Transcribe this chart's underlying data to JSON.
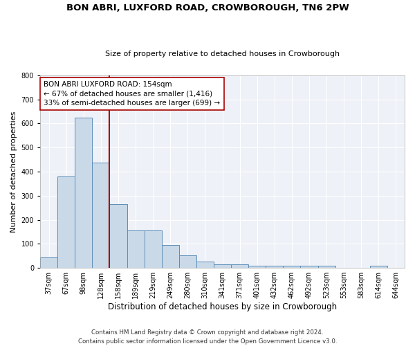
{
  "title1": "BON ABRI, LUXFORD ROAD, CROWBOROUGH, TN6 2PW",
  "title2": "Size of property relative to detached houses in Crowborough",
  "xlabel": "Distribution of detached houses by size in Crowborough",
  "ylabel": "Number of detached properties",
  "categories": [
    "37sqm",
    "67sqm",
    "98sqm",
    "128sqm",
    "158sqm",
    "189sqm",
    "219sqm",
    "249sqm",
    "280sqm",
    "310sqm",
    "341sqm",
    "371sqm",
    "401sqm",
    "432sqm",
    "462sqm",
    "492sqm",
    "523sqm",
    "553sqm",
    "583sqm",
    "614sqm",
    "644sqm"
  ],
  "values": [
    43,
    380,
    625,
    438,
    265,
    155,
    155,
    95,
    52,
    27,
    15,
    15,
    10,
    10,
    10,
    10,
    10,
    0,
    0,
    8,
    0
  ],
  "bar_color": "#c9d9e8",
  "bar_edge_color": "#5b8db8",
  "vline_color": "#aa0000",
  "annotation_text": "BON ABRI LUXFORD ROAD: 154sqm\n← 67% of detached houses are smaller (1,416)\n33% of semi-detached houses are larger (699) →",
  "annotation_box_color": "white",
  "annotation_box_edge": "#aa0000",
  "ylim": [
    0,
    800
  ],
  "yticks": [
    0,
    100,
    200,
    300,
    400,
    500,
    600,
    700,
    800
  ],
  "footer": "Contains HM Land Registry data © Crown copyright and database right 2024.\nContains public sector information licensed under the Open Government Licence v3.0.",
  "plot_bg_color": "#eef1f7",
  "grid_color": "white",
  "title1_fontsize": 9.5,
  "title2_fontsize": 8.0,
  "xlabel_fontsize": 8.5,
  "ylabel_fontsize": 8.0,
  "tick_fontsize": 7.0,
  "annotation_fontsize": 7.5,
  "footer_fontsize": 6.2
}
